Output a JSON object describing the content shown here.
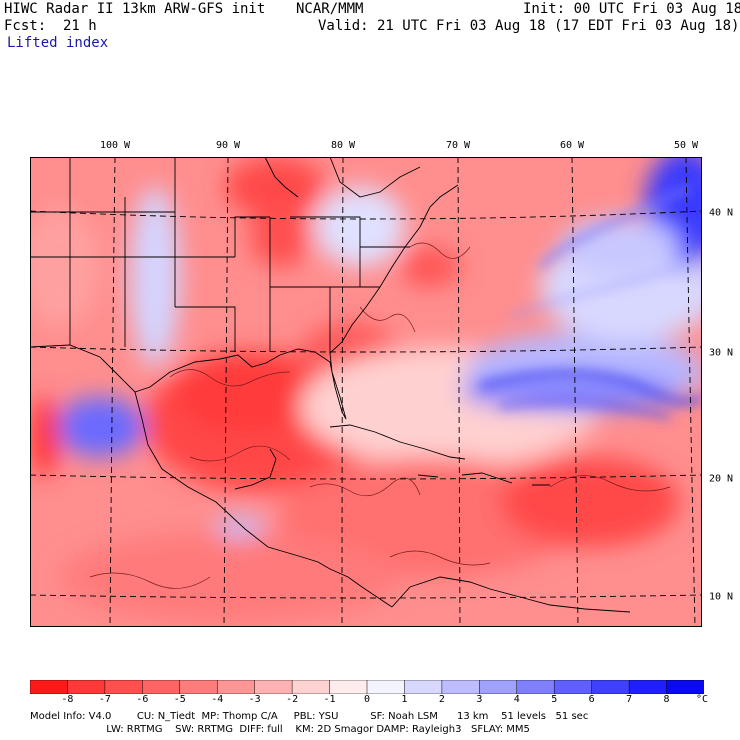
{
  "header": {
    "title": "HIWC Radar II 13km ARW-GFS init",
    "org": "NCAR/MMM",
    "fcst_label": "Fcst:",
    "fcst_value": "21 h",
    "init": "Init: 00 UTC Fri 03 Aug 18",
    "valid": "Valid: 21 UTC Fri 03 Aug 18 (17 EDT Fri 03 Aug 18)",
    "field": "Lifted index"
  },
  "lon_labels": [
    {
      "text": "100 W",
      "value": -100
    },
    {
      "text": "90 W",
      "value": -90
    },
    {
      "text": "80 W",
      "value": -80
    },
    {
      "text": "70 W",
      "value": -70
    },
    {
      "text": "60 W",
      "value": -60
    },
    {
      "text": "50 W",
      "value": -50
    }
  ],
  "lat_labels": [
    {
      "text": "40 N",
      "value": 40
    },
    {
      "text": "30 N",
      "value": 30
    },
    {
      "text": "20 N",
      "value": 20
    },
    {
      "text": "10 N",
      "value": 10
    }
  ],
  "colorbar": {
    "ticks": [
      "-8",
      "-7",
      "-6",
      "-5",
      "-4",
      "-3",
      "-2",
      "-1",
      "0",
      "1",
      "2",
      "3",
      "4",
      "5",
      "6",
      "7",
      "8"
    ],
    "unit": "°C",
    "colors": [
      "#ff1a1a",
      "#ff3838",
      "#ff4f4f",
      "#ff6464",
      "#ff7c7c",
      "#ff9696",
      "#ffb2b2",
      "#ffd2d2",
      "#ffecec",
      "#f4f4ff",
      "#d8d8ff",
      "#bcbcff",
      "#a0a0ff",
      "#8080ff",
      "#6060ff",
      "#4040ff",
      "#2020ff",
      "#0a0aee"
    ]
  },
  "footer": {
    "line1": "Model Info: V4.0        CU: N_Tiedt  MP: Thomp C/A     PBL: YSU          SF: Noah LSM      13 km    51 levels   51 sec",
    "line2": "                        LW: RRTMG    SW: RRTMG  DIFF: full    KM: 2D Smagor DAMP: Rayleigh3   SFLAY: MM5"
  }
}
